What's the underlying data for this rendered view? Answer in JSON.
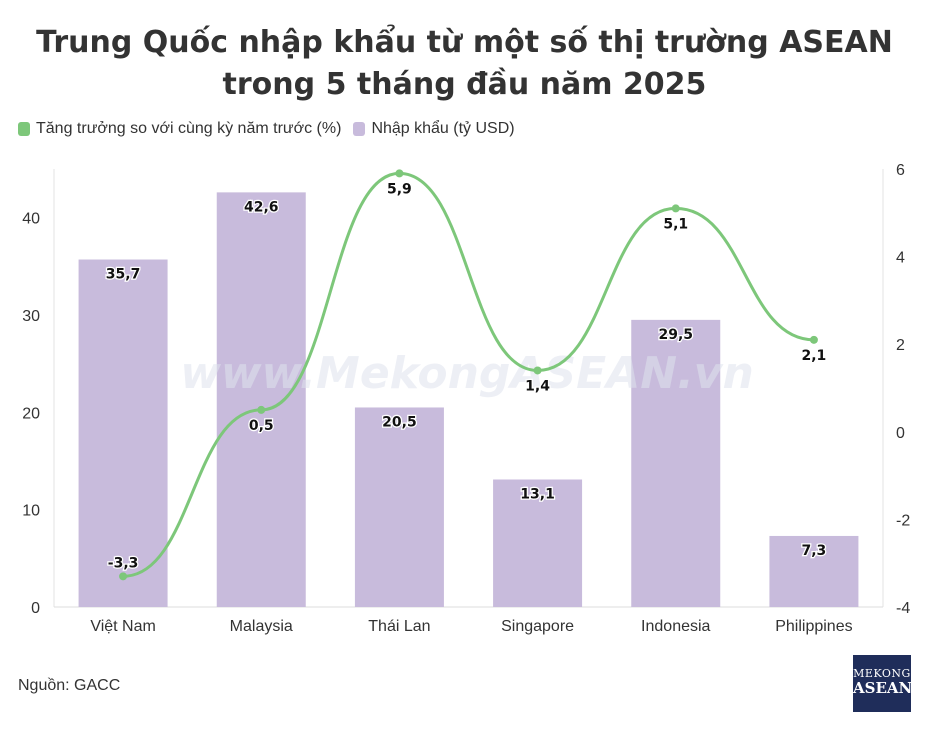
{
  "title_lines": [
    "Trung Quốc nhập khẩu từ một số thị trường ASEAN",
    "trong 5 tháng đầu năm 2025"
  ],
  "legend": {
    "growth": "Tăng trưởng so với cùng kỳ năm trước (%)",
    "imports": "Nhập khẩu (tỷ USD)"
  },
  "colors": {
    "bar": "#c8bbdc",
    "line": "#7dc77a",
    "text": "#333333"
  },
  "watermark": "www.MekongASEAN.vn",
  "source": "Nguồn: GACC",
  "logo": {
    "line1": "MEKONG",
    "line2": "ASEAN"
  },
  "chart_data": {
    "type": "bar+line",
    "categories": [
      "Việt Nam",
      "Malaysia",
      "Thái Lan",
      "Singapore",
      "Indonesia",
      "Philippines"
    ],
    "series": [
      {
        "name": "Nhập khẩu (tỷ USD)",
        "type": "bar",
        "axis": "left",
        "values": [
          35.7,
          42.6,
          20.5,
          13.1,
          29.5,
          7.3
        ],
        "labels": [
          "35,7",
          "42,6",
          "20,5",
          "13,1",
          "29,5",
          "7,3"
        ]
      },
      {
        "name": "Tăng trưởng so với cùng kỳ năm trước (%)",
        "type": "line",
        "axis": "right",
        "values": [
          -3.3,
          0.5,
          5.9,
          1.4,
          5.1,
          2.1
        ],
        "labels": [
          "-3,3",
          "0,5",
          "5,9",
          "1,4",
          "5,1",
          "2,1"
        ]
      }
    ],
    "y_left": {
      "min": 0,
      "max": 45,
      "ticks": [
        0,
        10,
        20,
        30,
        40
      ]
    },
    "y_right": {
      "min": -4,
      "max": 6,
      "ticks": [
        -4,
        -2,
        0,
        2,
        4,
        6
      ]
    },
    "legend_position": "top-left"
  }
}
